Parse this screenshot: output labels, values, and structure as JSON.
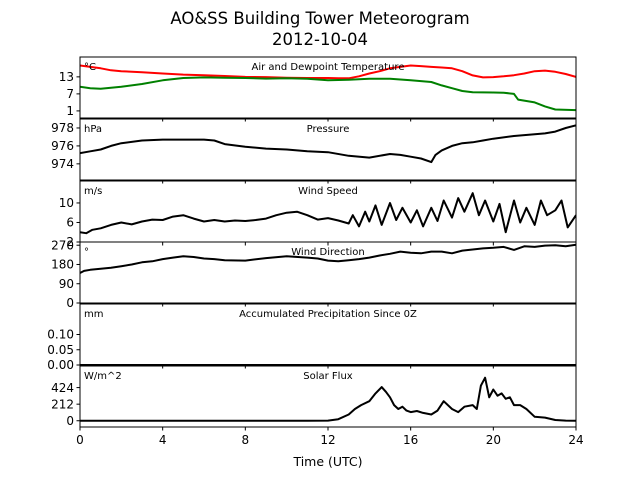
{
  "figure": {
    "title_line1": "AO&SS Building Tower Meteorogram",
    "title_line2": "2012-10-04",
    "xlabel": "Time (UTC)",
    "x_ticks": [
      0,
      4,
      8,
      12,
      16,
      20,
      24
    ]
  },
  "chart_data": [
    {
      "type": "line",
      "title": "Air and Dewpoint Temperature",
      "unit": "°C",
      "xlim": [
        0,
        24
      ],
      "ylim": [
        -1.5,
        20
      ],
      "yticks": [
        1,
        7,
        13
      ],
      "series": [
        {
          "color": "#ff0000",
          "x": [
            0,
            0.5,
            1,
            1.5,
            2,
            3,
            4,
            5,
            6,
            7,
            8,
            9,
            10,
            11,
            12,
            12.5,
            13,
            13.5,
            14,
            14.5,
            15,
            15.5,
            16,
            16.5,
            17,
            17.5,
            18,
            18.5,
            19,
            19.5,
            20,
            20.5,
            21,
            21.5,
            22,
            22.5,
            23,
            23.5,
            24
          ],
          "y": [
            17,
            16.5,
            16,
            15.3,
            15,
            14.6,
            14.2,
            13.8,
            13.6,
            13.3,
            13,
            12.9,
            12.7,
            12.6,
            12.6,
            12.5,
            12.5,
            13.2,
            14.2,
            15,
            16,
            16.5,
            17,
            16.8,
            16.5,
            16.3,
            16,
            15,
            13.5,
            12.8,
            12.9,
            13.2,
            13.6,
            14.2,
            15,
            15.2,
            14.8,
            14,
            13
          ]
        },
        {
          "color": "#008000",
          "x": [
            0,
            0.5,
            1,
            2,
            3,
            4,
            5,
            6,
            7,
            8,
            9,
            10,
            11,
            12,
            13,
            14,
            15,
            16,
            16.5,
            17,
            17.5,
            18,
            18.5,
            19,
            20,
            20.5,
            21,
            21.2,
            22,
            22.5,
            23,
            24
          ],
          "y": [
            9.5,
            9,
            8.8,
            9.5,
            10.5,
            11.8,
            12.6,
            12.8,
            12.7,
            12.6,
            12.4,
            12.5,
            12.3,
            11.8,
            12,
            12.3,
            12.3,
            11.8,
            11.5,
            11.2,
            10,
            9,
            8,
            7.6,
            7.5,
            7.4,
            7,
            5,
            4,
            2.6,
            1.5,
            1.3
          ]
        }
      ]
    },
    {
      "type": "line",
      "title": "Pressure",
      "unit": "hPa",
      "xlim": [
        0,
        24
      ],
      "ylim": [
        972.2,
        979
      ],
      "yticks": [
        974,
        976,
        978
      ],
      "series": [
        {
          "color": "#000000",
          "x": [
            0,
            0.5,
            1,
            1.5,
            2,
            3,
            4,
            5,
            6,
            6.5,
            7,
            8,
            9,
            10,
            11,
            12,
            13,
            14,
            15,
            15.5,
            16,
            16.5,
            17,
            17.2,
            17.5,
            18,
            18.5,
            19,
            19.5,
            20,
            21,
            22,
            22.5,
            23,
            23.5,
            24
          ],
          "y": [
            975.2,
            975.4,
            975.6,
            976,
            976.3,
            976.6,
            976.7,
            976.7,
            976.7,
            976.6,
            976.2,
            975.9,
            975.7,
            975.6,
            975.4,
            975.3,
            974.9,
            974.7,
            975.1,
            975.0,
            974.8,
            974.6,
            974.2,
            975,
            975.5,
            976.0,
            976.3,
            976.4,
            976.6,
            976.8,
            977.1,
            977.3,
            977.4,
            977.6,
            978,
            978.3
          ]
        }
      ]
    },
    {
      "type": "line",
      "title": "Wind Speed",
      "unit": "m/s",
      "xlim": [
        0,
        24
      ],
      "ylim": [
        2,
        14.5
      ],
      "yticks": [
        2,
        6,
        10
      ],
      "series": [
        {
          "color": "#000000",
          "x": [
            0,
            0.3,
            0.6,
            1,
            1.5,
            2,
            2.5,
            3,
            3.5,
            4,
            4.5,
            5,
            5.5,
            6,
            6.5,
            7,
            7.5,
            8,
            8.5,
            9,
            9.5,
            10,
            10.5,
            11,
            11.5,
            12,
            12.5,
            13,
            13.2,
            13.5,
            13.8,
            14,
            14.3,
            14.6,
            15,
            15.3,
            15.6,
            16,
            16.3,
            16.6,
            17,
            17.3,
            17.6,
            18,
            18.3,
            18.6,
            19,
            19.3,
            19.6,
            20,
            20.3,
            20.6,
            21,
            21.3,
            21.6,
            22,
            22.3,
            22.6,
            23,
            23.3,
            23.6,
            24
          ],
          "y": [
            4,
            3.8,
            4.5,
            4.8,
            5.5,
            6,
            5.6,
            6.2,
            6.6,
            6.5,
            7.2,
            7.5,
            6.8,
            6.2,
            6.5,
            6.2,
            6.4,
            6.3,
            6.5,
            6.8,
            7.5,
            8,
            8.2,
            7.5,
            6.6,
            6.9,
            6.4,
            5.8,
            7.5,
            5.2,
            8.2,
            6.2,
            9.5,
            5.5,
            10,
            6.5,
            9,
            6,
            8.5,
            5.2,
            9,
            6.3,
            10.5,
            7,
            11,
            8.2,
            12,
            7.5,
            10.5,
            6.2,
            9.8,
            4,
            10.5,
            6,
            9,
            5.5,
            10.5,
            7.5,
            8.5,
            10.5,
            5,
            7.5
          ]
        }
      ]
    },
    {
      "type": "line",
      "title": "Wind Direction",
      "unit": "°",
      "xlim": [
        0,
        24
      ],
      "ylim": [
        0,
        285
      ],
      "yticks": [
        0,
        90,
        180,
        270
      ],
      "series": [
        {
          "color": "#000000",
          "x": [
            0,
            0.2,
            0.5,
            1,
            1.5,
            2,
            2.5,
            3,
            3.5,
            4,
            4.5,
            5,
            5.5,
            6,
            6.5,
            7,
            8,
            9,
            10,
            11,
            11.5,
            12,
            12.5,
            13,
            13.5,
            14,
            14.5,
            15,
            15.5,
            16,
            16.5,
            17,
            17.5,
            18,
            18.5,
            19,
            19.5,
            20,
            20.5,
            21,
            21.5,
            22,
            22.5,
            23,
            23.5,
            24
          ],
          "y": [
            140,
            150,
            155,
            160,
            165,
            172,
            180,
            190,
            195,
            205,
            212,
            218,
            215,
            208,
            205,
            200,
            198,
            210,
            218,
            212,
            208,
            198,
            195,
            200,
            205,
            212,
            222,
            230,
            240,
            235,
            232,
            240,
            240,
            232,
            245,
            250,
            255,
            258,
            262,
            248,
            265,
            262,
            268,
            270,
            265,
            272
          ]
        }
      ]
    },
    {
      "type": "line",
      "title": "Accumulated Precipitation Since 0Z",
      "unit": "mm",
      "xlim": [
        0,
        24
      ],
      "ylim": [
        0,
        0.2
      ],
      "yticks": [
        0.0,
        0.05,
        0.1
      ],
      "ytick_labels": [
        "0.00",
        "0.05",
        "0.10"
      ],
      "series": [
        {
          "color": "#000000",
          "x": [
            0,
            24
          ],
          "y": [
            0,
            0
          ]
        }
      ]
    },
    {
      "type": "line",
      "title": "Solar Flux",
      "unit": "W/m^2",
      "xlim": [
        0,
        24
      ],
      "ylim": [
        -80,
        700
      ],
      "yticks": [
        0,
        212,
        424
      ],
      "series": [
        {
          "color": "#000000",
          "x": [
            0,
            11,
            12,
            12.5,
            13,
            13.3,
            13.6,
            14,
            14.3,
            14.6,
            14.8,
            15,
            15.2,
            15.4,
            15.6,
            15.8,
            16,
            16.3,
            16.6,
            17,
            17.3,
            17.6,
            18,
            18.3,
            18.6,
            19,
            19.2,
            19.4,
            19.6,
            19.8,
            20,
            20.2,
            20.4,
            20.6,
            20.8,
            21,
            21.3,
            21.6,
            22,
            22.5,
            23,
            23.5,
            24
          ],
          "y": [
            0,
            0,
            2,
            20,
            80,
            150,
            200,
            250,
            350,
            430,
            370,
            300,
            200,
            150,
            180,
            130,
            110,
            125,
            100,
            80,
            130,
            250,
            150,
            110,
            180,
            200,
            150,
            450,
            550,
            300,
            400,
            320,
            350,
            280,
            300,
            200,
            200,
            150,
            50,
            40,
            10,
            2,
            0
          ]
        }
      ]
    }
  ]
}
